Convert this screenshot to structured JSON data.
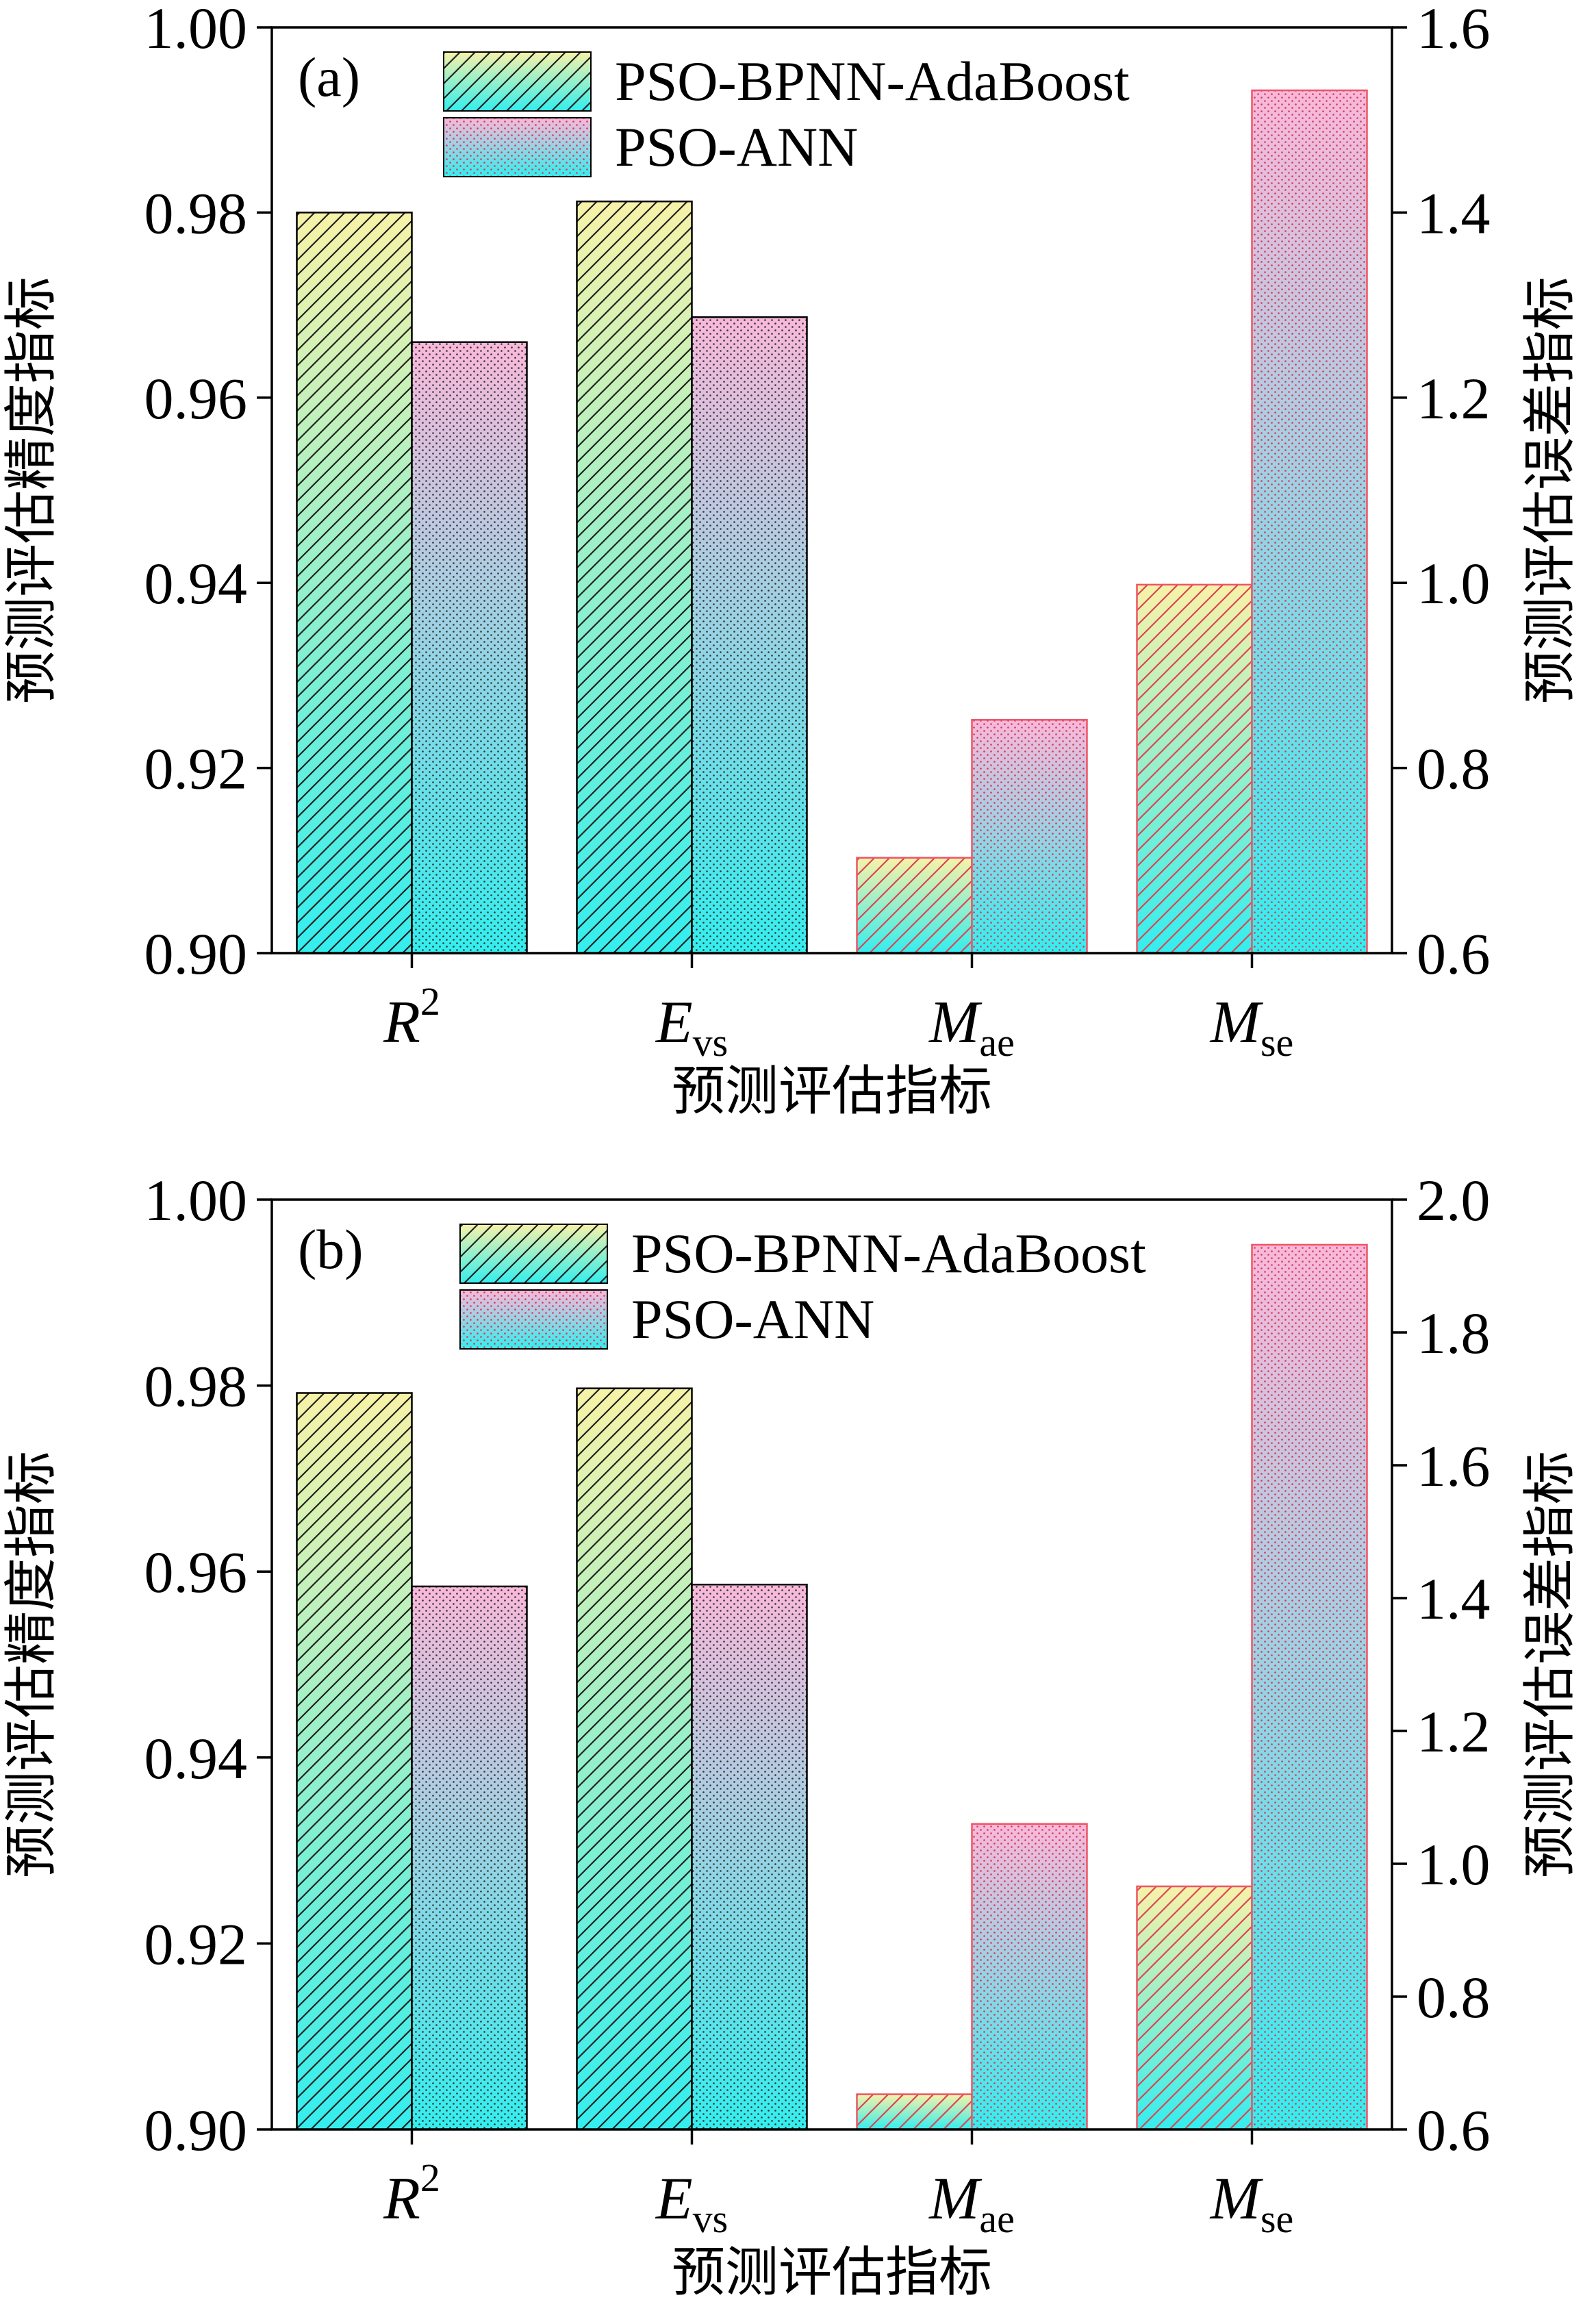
{
  "chart_data": [
    {
      "type": "bar",
      "panel_label": "(a)",
      "categories": [
        {
          "main": "R",
          "sup": "2",
          "sub": "",
          "axis": "left"
        },
        {
          "main": "E",
          "sup": "",
          "sub": "vs",
          "axis": "left"
        },
        {
          "main": "M",
          "sup": "",
          "sub": "ae",
          "axis": "right"
        },
        {
          "main": "M",
          "sup": "",
          "sub": "se",
          "axis": "right"
        }
      ],
      "series": [
        {
          "name": "PSO-BPNN-AdaBoost",
          "values": [
            0.98,
            0.9812,
            0.703,
            0.998
          ]
        },
        {
          "name": "PSO-ANN",
          "values": [
            0.966,
            0.9687,
            0.852,
            1.532
          ]
        }
      ],
      "xlabel": "预测评估指标",
      "ylabel_left": "预测评估精度指标",
      "ylabel_right": "预测评估误差指标",
      "ylim_left": [
        0.9,
        1.0
      ],
      "ylim_right": [
        0.6,
        1.6
      ],
      "yticks_left": [
        "0.90",
        "0.92",
        "0.94",
        "0.96",
        "0.98",
        "1.00"
      ],
      "yticks_right": [
        "0.6",
        "0.8",
        "1.0",
        "1.2",
        "1.4",
        "1.6"
      ],
      "legend_position": "top-center",
      "grid": false
    },
    {
      "type": "bar",
      "panel_label": "(b)",
      "categories": [
        {
          "main": "R",
          "sup": "2",
          "sub": "",
          "axis": "left"
        },
        {
          "main": "E",
          "sup": "",
          "sub": "vs",
          "axis": "left"
        },
        {
          "main": "M",
          "sup": "",
          "sub": "ae",
          "axis": "right"
        },
        {
          "main": "M",
          "sup": "",
          "sub": "se",
          "axis": "right"
        }
      ],
      "series": [
        {
          "name": "PSO-BPNN-AdaBoost",
          "values": [
            0.9792,
            0.9797,
            0.653,
            0.966
          ]
        },
        {
          "name": "PSO-ANN",
          "values": [
            0.9584,
            0.9586,
            1.06,
            1.932
          ]
        }
      ],
      "xlabel": "预测评估指标",
      "ylabel_left": "预测评估精度指标",
      "ylabel_right": "预测评估误差指标",
      "ylim_left": [
        0.9,
        1.0
      ],
      "ylim_right": [
        0.6,
        2.0
      ],
      "yticks_left": [
        "0.90",
        "0.92",
        "0.94",
        "0.96",
        "0.98",
        "1.00"
      ],
      "yticks_right": [
        "0.6",
        "0.8",
        "1.0",
        "1.2",
        "1.4",
        "1.6",
        "1.8",
        "2.0"
      ],
      "legend_position": "top-center",
      "grid": false
    }
  ],
  "colors": {
    "series1_top": "#f7f2a8",
    "series1_bottom": "#33eeee",
    "series2_top": "#f9b8da",
    "series2_bottom": "#33eeee",
    "axis_left_bar_edge": "#000000",
    "axis_right_bar_edge": "#ee5566"
  }
}
